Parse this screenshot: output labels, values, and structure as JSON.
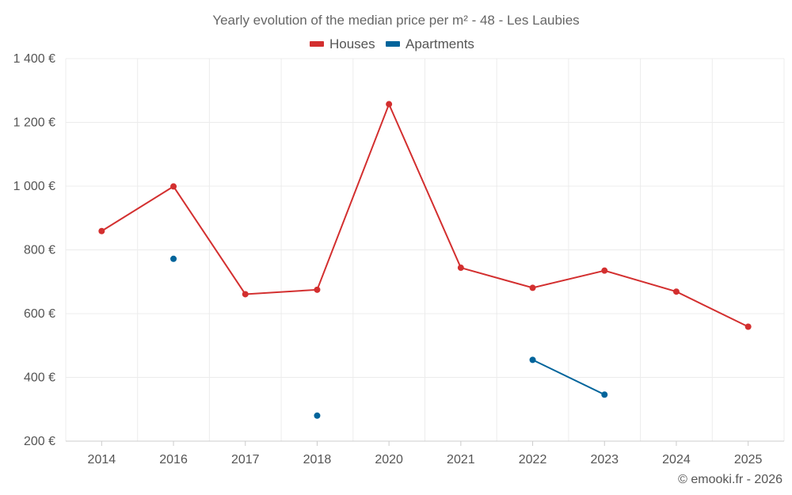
{
  "chart_data": {
    "type": "line",
    "title": "Yearly evolution of the median price per m² - 48 - Les Laubies",
    "categories": [
      "2014",
      "2016",
      "2017",
      "2018",
      "2020",
      "2021",
      "2022",
      "2023",
      "2024",
      "2025"
    ],
    "series": [
      {
        "name": "Houses",
        "color": "#d32f2f",
        "values": [
          859,
          999,
          661,
          675,
          1257,
          744,
          681,
          735,
          669,
          559
        ]
      },
      {
        "name": "Apartments",
        "color": "#00649b",
        "values": [
          null,
          772,
          null,
          280,
          null,
          null,
          455,
          346,
          null,
          null
        ]
      }
    ],
    "y_ticks": [
      "200 €",
      "400 €",
      "600 €",
      "800 €",
      "1 000 €",
      "1 200 €",
      "1 400 €"
    ],
    "ylim": [
      200,
      1400
    ],
    "ytick_values": [
      200,
      400,
      600,
      800,
      1000,
      1200,
      1400
    ],
    "xlabel": "",
    "ylabel": "",
    "legend_position": "top-center",
    "grid": true
  },
  "credit": "© emooki.fr - 2026"
}
